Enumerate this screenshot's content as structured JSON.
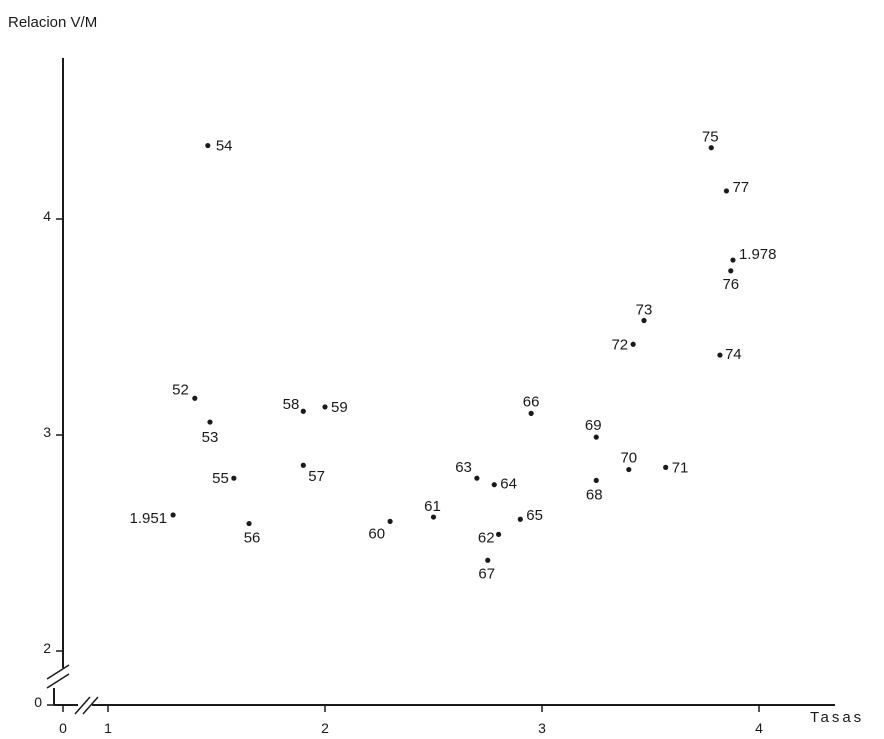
{
  "chart_data": {
    "type": "scatter",
    "title": "",
    "ylabel": "Relacion V/M",
    "xlabel": "Tasas",
    "xlim": [
      0,
      4.3
    ],
    "ylim": [
      0,
      4.6
    ],
    "y_axis_break": true,
    "x_axis_break": true,
    "grid": false,
    "x_ticks": [
      {
        "value": 0,
        "label": "0"
      },
      {
        "value": 1,
        "label": "1"
      },
      {
        "value": 2,
        "label": "2"
      },
      {
        "value": 3,
        "label": "3"
      },
      {
        "value": 4,
        "label": "4"
      }
    ],
    "y_ticks": [
      {
        "value": 0,
        "label": "0"
      },
      {
        "value": 2,
        "label": "2"
      },
      {
        "value": 3,
        "label": "3"
      },
      {
        "value": 4,
        "label": "4"
      }
    ],
    "points": [
      {
        "label": "1.951",
        "x": 1.3,
        "y": 2.63
      },
      {
        "label": "52",
        "x": 1.4,
        "y": 3.17
      },
      {
        "label": "53",
        "x": 1.47,
        "y": 3.06
      },
      {
        "label": "54",
        "x": 1.46,
        "y": 4.34
      },
      {
        "label": "55",
        "x": 1.58,
        "y": 2.8
      },
      {
        "label": "56",
        "x": 1.65,
        "y": 2.59
      },
      {
        "label": "57",
        "x": 1.9,
        "y": 2.86
      },
      {
        "label": "58",
        "x": 1.9,
        "y": 3.11
      },
      {
        "label": "59",
        "x": 2.0,
        "y": 3.13
      },
      {
        "label": "60",
        "x": 2.3,
        "y": 2.6
      },
      {
        "label": "61",
        "x": 2.5,
        "y": 2.62
      },
      {
        "label": "62",
        "x": 2.8,
        "y": 2.54
      },
      {
        "label": "63",
        "x": 2.7,
        "y": 2.8
      },
      {
        "label": "64",
        "x": 2.78,
        "y": 2.77
      },
      {
        "label": "65",
        "x": 2.9,
        "y": 2.61
      },
      {
        "label": "66",
        "x": 2.95,
        "y": 3.1
      },
      {
        "label": "67",
        "x": 2.75,
        "y": 2.42
      },
      {
        "label": "68",
        "x": 3.25,
        "y": 2.79
      },
      {
        "label": "69",
        "x": 3.25,
        "y": 2.99
      },
      {
        "label": "70",
        "x": 3.4,
        "y": 2.84
      },
      {
        "label": "71",
        "x": 3.57,
        "y": 2.85
      },
      {
        "label": "72",
        "x": 3.42,
        "y": 3.42
      },
      {
        "label": "73",
        "x": 3.47,
        "y": 3.53
      },
      {
        "label": "74",
        "x": 3.82,
        "y": 3.37
      },
      {
        "label": "75",
        "x": 3.78,
        "y": 4.33
      },
      {
        "label": "76",
        "x": 3.87,
        "y": 3.76
      },
      {
        "label": "77",
        "x": 3.85,
        "y": 4.13
      },
      {
        "label": "1.978",
        "x": 3.88,
        "y": 3.81
      }
    ]
  }
}
